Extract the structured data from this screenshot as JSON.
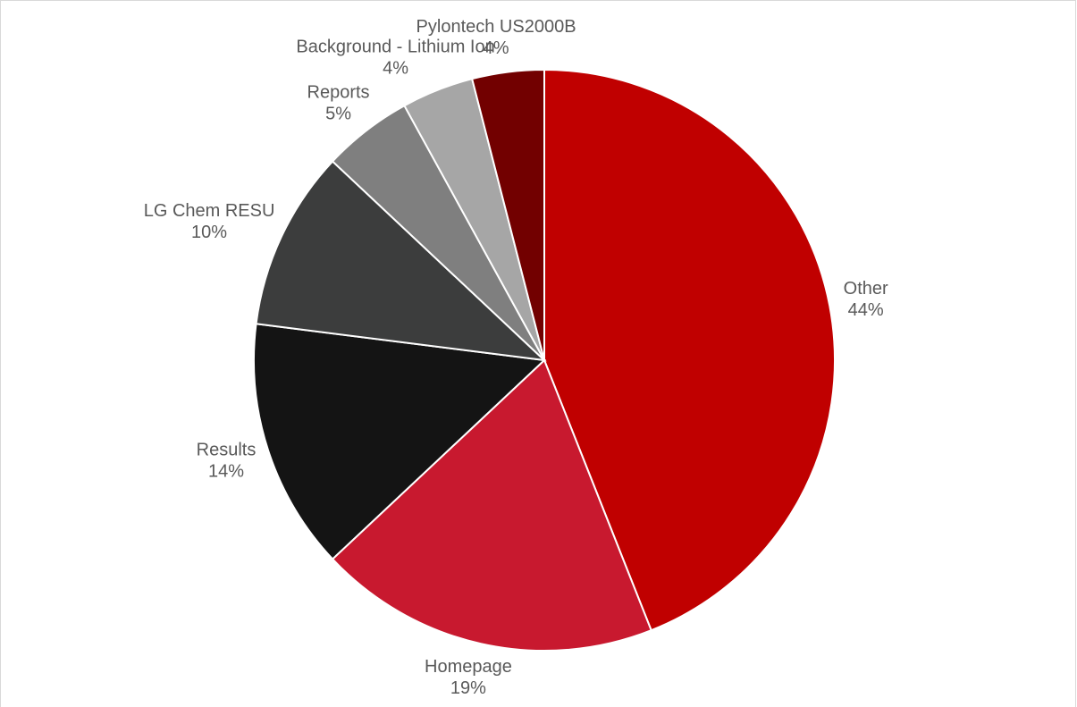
{
  "chart_data": {
    "type": "pie",
    "categories": [
      "Other",
      "Homepage",
      "Results",
      "LG Chem RESU",
      "Reports",
      "Background - Lithium Ion",
      "Pylontech US2000B"
    ],
    "values": [
      44,
      19,
      14,
      10,
      5,
      4,
      4
    ],
    "value_labels": [
      "44%",
      "19%",
      "14%",
      "10%",
      "5%",
      "4%",
      "4%"
    ],
    "colors": [
      "#c00000",
      "#c8192f",
      "#141414",
      "#3c3d3d",
      "#7f7f7f",
      "#a6a6a6",
      "#720000"
    ]
  }
}
